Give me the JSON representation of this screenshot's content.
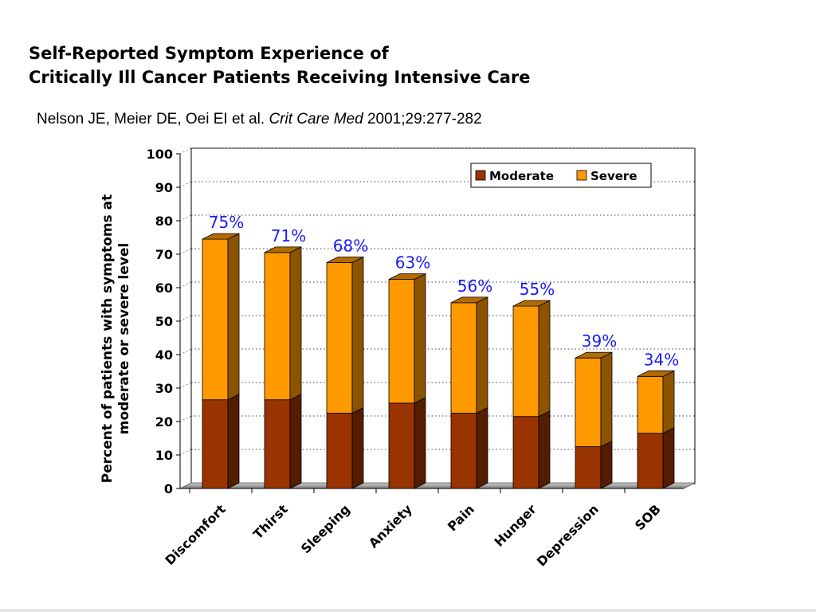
{
  "title": {
    "line1": "Self-Reported Symptom Experience of",
    "line2": "Critically Ill Cancer Patients Receiving Intensive Care"
  },
  "citation": {
    "authors": "Nelson JE, Meier DE, Oei EI et al.",
    "journal": "Crit Care Med",
    "details": "2001;29:277-282"
  },
  "colors": {
    "moderate": "#993300",
    "severe": "#FF9900",
    "pct_label": "#1a1aff"
  },
  "chart_data": {
    "type": "bar",
    "stacked": true,
    "categories": [
      "Discomfort",
      "Thirst",
      "Sleeping",
      "Anxiety",
      "Pain",
      "Hunger",
      "Depression",
      "SOB"
    ],
    "series": [
      {
        "name": "Moderate",
        "values": [
          26.5,
          26.5,
          22.5,
          25.5,
          22.5,
          21.5,
          12.5,
          16.5
        ]
      },
      {
        "name": "Severe",
        "values": [
          48,
          44,
          45,
          37,
          33,
          33,
          26.5,
          17
        ]
      }
    ],
    "totals": [
      75,
      71,
      68,
      63,
      56,
      55,
      39,
      34
    ],
    "total_labels": [
      "75%",
      "71%",
      "68%",
      "63%",
      "56%",
      "55%",
      "39%",
      "34%"
    ],
    "ylabel": "Percent of patients with symptoms at moderate or severe level",
    "ylabel_lines": [
      "Percent of patients with symptoms at",
      "moderate or severe level"
    ],
    "ylim": [
      0,
      100
    ],
    "yticks": [
      0,
      10,
      20,
      30,
      40,
      50,
      60,
      70,
      80,
      90,
      100
    ],
    "grid": true,
    "legend": {
      "entries": [
        "Moderate",
        "Severe"
      ],
      "position": "top-right"
    }
  }
}
